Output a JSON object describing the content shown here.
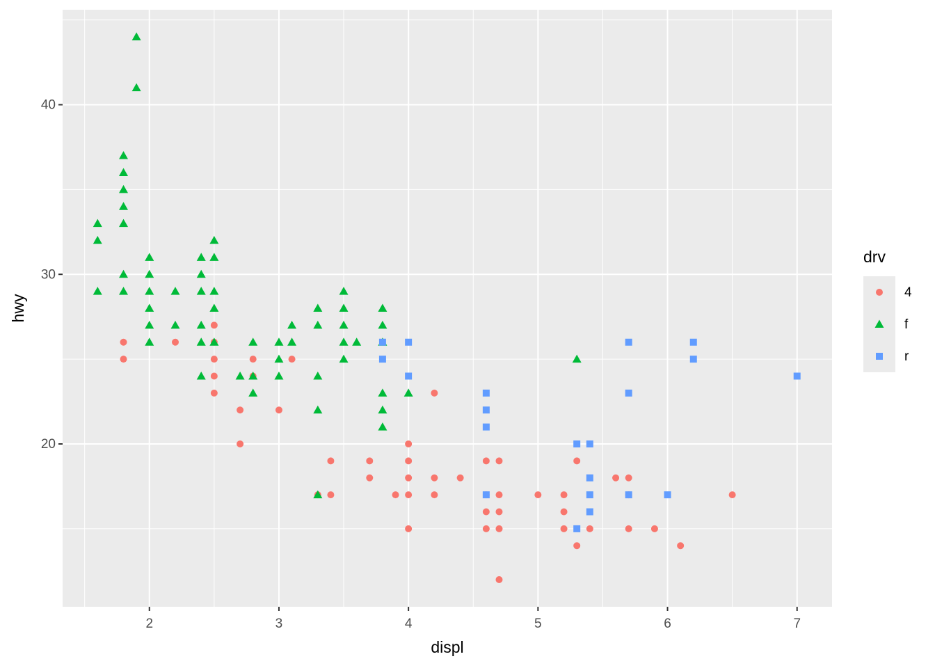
{
  "chart_data": {
    "type": "scatter",
    "x_label": "displ",
    "y_label": "hwy",
    "legend_title": "drv",
    "legend_position": "right",
    "grid": true,
    "xlim": [
      1.33,
      7.27
    ],
    "ylim": [
      10.4,
      45.6
    ],
    "xticks": [
      2,
      3,
      4,
      5,
      6,
      7
    ],
    "yticks": [
      20,
      30,
      40
    ],
    "x_minor_breaks": [
      1.5,
      2.5,
      3.5,
      4.5,
      5.5,
      6.5
    ],
    "y_minor_breaks": [
      15,
      25,
      35,
      45
    ],
    "series": [
      {
        "name": "4",
        "color": "#F8766D",
        "shape": "circle",
        "x": [
          1.8,
          1.8,
          2.2,
          2.5,
          2.5,
          2.5,
          2.5,
          2.5,
          2.7,
          2.7,
          2.8,
          2.8,
          3.0,
          3.1,
          3.3,
          3.4,
          3.4,
          3.7,
          3.7,
          3.9,
          4.0,
          4.0,
          4.0,
          4.0,
          4.0,
          4.2,
          4.2,
          4.2,
          4.4,
          4.6,
          4.6,
          4.6,
          4.6,
          4.7,
          4.7,
          4.7,
          4.7,
          4.7,
          5.0,
          5.2,
          5.2,
          5.2,
          5.3,
          5.3,
          5.4,
          5.6,
          5.7,
          5.7,
          5.7,
          5.9,
          6.1,
          6.5
        ],
        "y": [
          26,
          25,
          26,
          27,
          26,
          25,
          24,
          23,
          22,
          20,
          25,
          24,
          22,
          25,
          17,
          19,
          17,
          19,
          18,
          17,
          20,
          19,
          18,
          17,
          15,
          23,
          18,
          17,
          18,
          19,
          17,
          16,
          15,
          19,
          17,
          16,
          15,
          12,
          17,
          17,
          16,
          15,
          19,
          14,
          15,
          18,
          18,
          17,
          15,
          15,
          14,
          17
        ]
      },
      {
        "name": "f",
        "color": "#00BA38",
        "shape": "triangle",
        "x": [
          1.6,
          1.6,
          1.6,
          1.8,
          1.8,
          1.8,
          1.8,
          1.8,
          1.8,
          1.8,
          1.9,
          1.9,
          2.0,
          2.0,
          2.0,
          2.0,
          2.0,
          2.0,
          2.2,
          2.2,
          2.4,
          2.4,
          2.4,
          2.4,
          2.4,
          2.4,
          2.5,
          2.5,
          2.5,
          2.5,
          2.5,
          2.7,
          2.8,
          2.8,
          2.8,
          3.0,
          3.0,
          3.0,
          3.1,
          3.1,
          3.3,
          3.3,
          3.3,
          3.3,
          3.3,
          3.5,
          3.5,
          3.5,
          3.5,
          3.5,
          3.6,
          3.8,
          3.8,
          3.8,
          3.8,
          3.8,
          3.8,
          4.0,
          5.3
        ],
        "y": [
          33,
          32,
          29,
          37,
          36,
          35,
          34,
          33,
          30,
          29,
          44,
          41,
          31,
          30,
          29,
          28,
          27,
          26,
          29,
          27,
          31,
          30,
          29,
          27,
          26,
          24,
          32,
          31,
          29,
          28,
          26,
          24,
          26,
          24,
          23,
          26,
          25,
          24,
          27,
          26,
          28,
          27,
          24,
          22,
          17,
          29,
          28,
          27,
          26,
          25,
          26,
          28,
          27,
          26,
          23,
          22,
          21,
          23,
          25
        ]
      },
      {
        "name": "r",
        "color": "#619CFF",
        "shape": "square",
        "x": [
          3.8,
          3.8,
          4.0,
          4.0,
          4.6,
          4.6,
          4.6,
          4.6,
          5.3,
          5.3,
          5.4,
          5.4,
          5.4,
          5.4,
          5.7,
          5.7,
          5.7,
          6.0,
          6.2,
          6.2,
          7.0
        ],
        "y": [
          26,
          25,
          26,
          24,
          23,
          22,
          21,
          17,
          20,
          15,
          20,
          18,
          17,
          16,
          26,
          23,
          17,
          17,
          26,
          25,
          24
        ]
      }
    ]
  }
}
